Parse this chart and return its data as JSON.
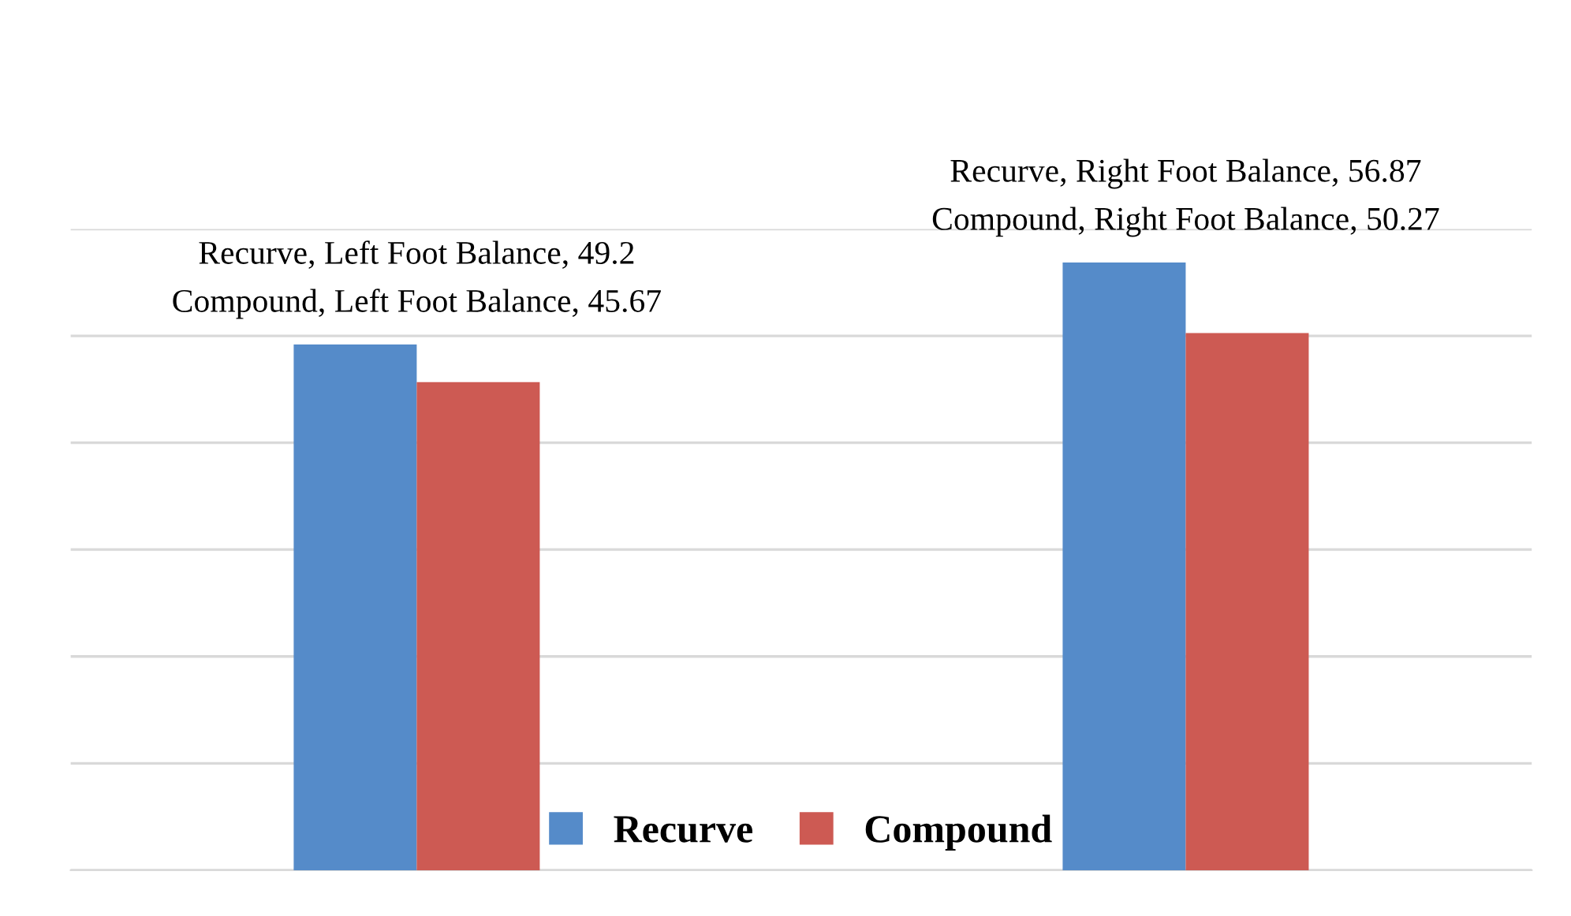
{
  "chart_data": {
    "type": "bar",
    "categories": [
      null,
      null
    ],
    "series": [
      {
        "name": "Recurve",
        "color": "#558bc9",
        "values": [
          49.2,
          56.87
        ],
        "value_labels": [
          "Recurve, Left Foot Balance, 49.2",
          "Recurve, Right Foot Balance, 56.87"
        ]
      },
      {
        "name": "Compound",
        "color": "#cd5a53",
        "values": [
          45.67,
          50.27
        ],
        "value_labels": [
          "Compound, Left Foot Balance, 45.67",
          "Compound, Right Foot Balance, 50.27"
        ]
      }
    ],
    "ylim": [
      0,
      60
    ],
    "yticks": [
      {
        "value": 0,
        "label": null
      },
      {
        "value": 10,
        "label": null
      },
      {
        "value": 20,
        "label": null
      },
      {
        "value": 30,
        "label": null
      },
      {
        "value": 40,
        "label": null
      },
      {
        "value": 50,
        "label": null
      },
      {
        "value": 60,
        "label": null
      }
    ],
    "grid": "y",
    "legend": "bottom"
  }
}
